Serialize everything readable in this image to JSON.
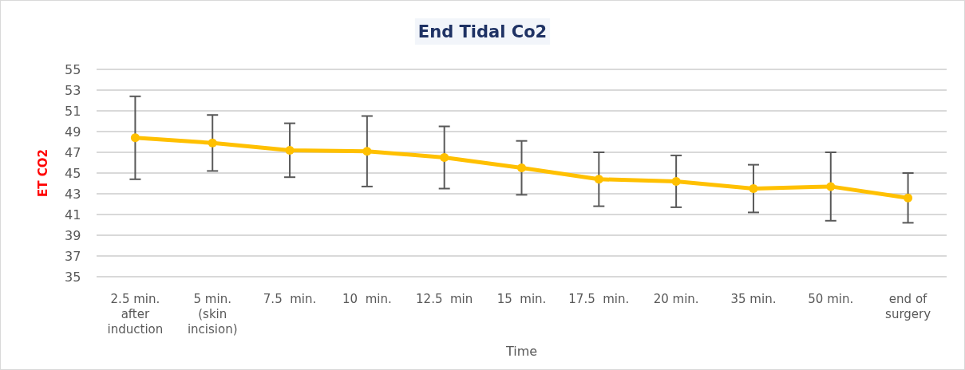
{
  "chart_data": {
    "type": "line",
    "title": "End Tidal Co2",
    "xlabel": "Time",
    "ylabel": "ET CO2",
    "categories": [
      "2.5 min.\nafter\ninduction",
      "5 min.\n(skin\nincision)",
      "7.5  min.",
      "10  min.",
      "12.5  min",
      "15  min.",
      "17.5  min.",
      "20 min.",
      "35 min.",
      "50 min.",
      "end of\nsurgery"
    ],
    "series": [
      {
        "color": "#ffc000",
        "values": [
          48.4,
          47.9,
          47.2,
          47.1,
          46.5,
          45.5,
          44.4,
          44.2,
          43.5,
          43.7,
          42.6
        ],
        "errors": [
          4.0,
          2.7,
          2.6,
          3.4,
          3.0,
          2.6,
          2.6,
          2.5,
          2.3,
          3.3,
          2.4
        ]
      }
    ],
    "ylim": [
      35,
      55
    ],
    "yticks": [
      35,
      37,
      39,
      41,
      43,
      45,
      47,
      49,
      51,
      53,
      55
    ],
    "grid": "y",
    "marker": "circle",
    "line_style": "solid"
  }
}
